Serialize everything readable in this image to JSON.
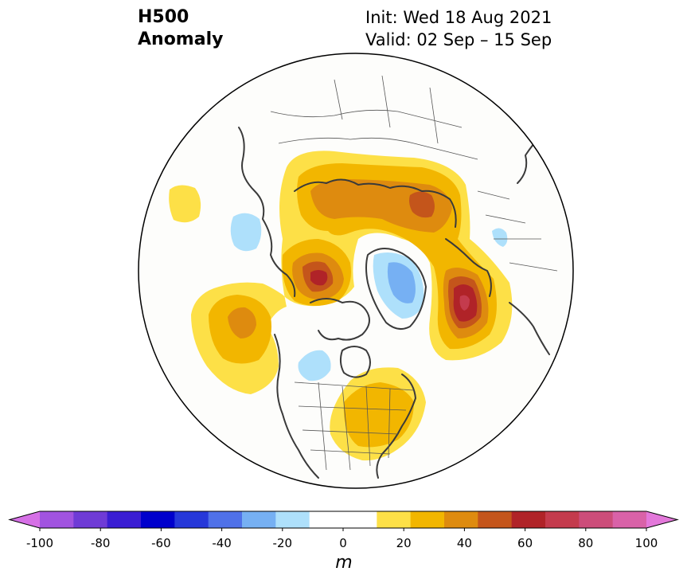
{
  "header": {
    "title_line1": "H500",
    "title_line2": "Anomaly",
    "init": "Init: Wed 18 Aug 2021",
    "valid": "Valid: 02 Sep – 15 Sep"
  },
  "colorbar": {
    "unit": "m",
    "min": -100,
    "max": 100,
    "step": 10,
    "tick_labels": [
      "-100",
      "-80",
      "-60",
      "-40",
      "-20",
      "0",
      "20",
      "40",
      "60",
      "80",
      "100"
    ],
    "tick_values": [
      -100,
      -80,
      -60,
      -40,
      -20,
      0,
      20,
      40,
      60,
      80,
      100
    ],
    "colors": [
      "#d670e6",
      "#a153e0",
      "#6f3bd6",
      "#3a1dd3",
      "#0000cc",
      "#2638d9",
      "#4f71e8",
      "#76b0f3",
      "#aee0fb",
      "#ffffff",
      "#ffffff",
      "#fde047",
      "#f2b600",
      "#de8b0f",
      "#c4551b",
      "#b02328",
      "#c43b4d",
      "#cc4d7a",
      "#d962a8",
      "#e378da"
    ]
  },
  "map": {
    "projection": "north-polar-stereographic",
    "anomaly_colors": {
      "pos10": "#fde047",
      "pos20": "#f2b600",
      "pos30": "#de8b0f",
      "pos40": "#c4551b",
      "pos50": "#b02328",
      "pos60": "#c43b4d",
      "neg10": "#aee0fb",
      "neg20": "#76b0f3"
    }
  }
}
